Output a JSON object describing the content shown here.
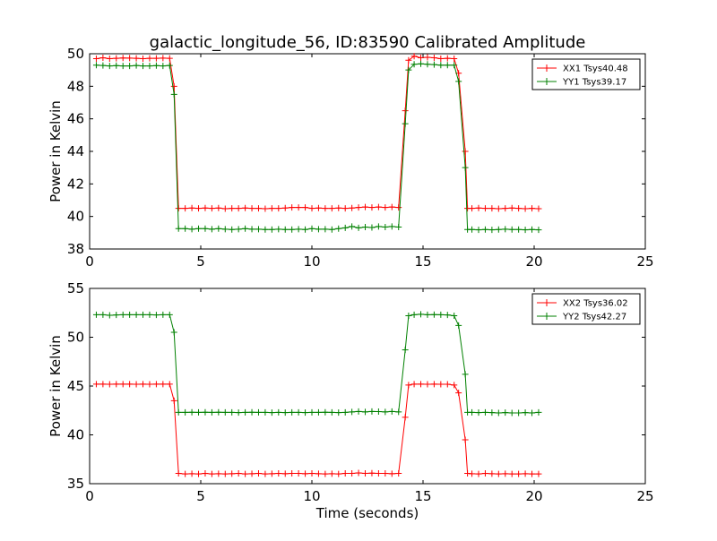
{
  "figure": {
    "title": "galactic_longitude_56, ID:83590 Calibrated Amplitude",
    "xlabel": "Time (seconds)",
    "colors": {
      "red": "#ff0000",
      "green": "#008000"
    }
  },
  "chart_data": [
    {
      "type": "line",
      "title": "galactic_longitude_56, ID:83590 Calibrated Amplitude",
      "xlabel": "",
      "ylabel": "Power in Kelvin",
      "xlim": [
        0,
        25
      ],
      "ylim": [
        38,
        50
      ],
      "xticks": [
        0,
        5,
        10,
        15,
        20,
        25
      ],
      "yticks": [
        38,
        40,
        42,
        44,
        46,
        48,
        50
      ],
      "grid": false,
      "legend_position": "top-right",
      "x": [
        0.3,
        0.6,
        0.9,
        1.2,
        1.5,
        1.8,
        2.1,
        2.4,
        2.7,
        3.0,
        3.3,
        3.6,
        3.8,
        4.0,
        4.3,
        4.6,
        4.9,
        5.2,
        5.5,
        5.8,
        6.1,
        6.4,
        6.7,
        7.0,
        7.3,
        7.6,
        7.9,
        8.2,
        8.5,
        8.8,
        9.1,
        9.4,
        9.7,
        10.0,
        10.3,
        10.6,
        10.9,
        11.2,
        11.5,
        11.8,
        12.1,
        12.4,
        12.7,
        13.0,
        13.3,
        13.6,
        13.9,
        14.2,
        14.35,
        14.6,
        14.9,
        15.2,
        15.5,
        15.8,
        16.1,
        16.4,
        16.6,
        16.9,
        17.0,
        17.2,
        17.5,
        17.8,
        18.1,
        18.4,
        18.7,
        19.0,
        19.3,
        19.6,
        19.9,
        20.2
      ],
      "series": [
        {
          "name": "XX1 Tsys40.48",
          "color": "#ff0000",
          "values": [
            49.7,
            49.75,
            49.7,
            49.72,
            49.74,
            49.73,
            49.72,
            49.7,
            49.72,
            49.72,
            49.73,
            49.72,
            48.0,
            40.5,
            40.5,
            40.52,
            40.5,
            40.52,
            40.5,
            40.52,
            40.48,
            40.5,
            40.5,
            40.52,
            40.5,
            40.5,
            40.48,
            40.5,
            40.5,
            40.52,
            40.55,
            40.55,
            40.55,
            40.5,
            40.52,
            40.5,
            40.5,
            40.52,
            40.5,
            40.52,
            40.55,
            40.58,
            40.55,
            40.58,
            40.55,
            40.58,
            40.55,
            46.5,
            49.6,
            49.85,
            49.75,
            49.78,
            49.75,
            49.7,
            49.72,
            49.7,
            48.8,
            44.0,
            40.5,
            40.5,
            40.52,
            40.5,
            40.5,
            40.48,
            40.5,
            40.52,
            40.5,
            40.48,
            40.5,
            40.48
          ]
        },
        {
          "name": "YY1 Tsys39.17",
          "color": "#008000",
          "values": [
            49.3,
            49.28,
            49.25,
            49.27,
            49.25,
            49.25,
            49.28,
            49.25,
            49.25,
            49.27,
            49.25,
            49.28,
            47.5,
            39.25,
            39.25,
            39.22,
            39.25,
            39.25,
            39.22,
            39.25,
            39.22,
            39.2,
            39.22,
            39.25,
            39.22,
            39.22,
            39.2,
            39.2,
            39.22,
            39.2,
            39.2,
            39.22,
            39.2,
            39.25,
            39.22,
            39.22,
            39.2,
            39.25,
            39.3,
            39.38,
            39.3,
            39.35,
            39.32,
            39.38,
            39.35,
            39.38,
            39.35,
            45.7,
            49.0,
            49.35,
            49.38,
            49.35,
            49.33,
            49.3,
            49.3,
            49.3,
            48.3,
            43.0,
            39.2,
            39.2,
            39.18,
            39.2,
            39.18,
            39.2,
            39.22,
            39.2,
            39.2,
            39.18,
            39.2,
            39.18
          ]
        }
      ]
    },
    {
      "type": "line",
      "title": "",
      "xlabel": "Time (seconds)",
      "ylabel": "Power in Kelvin",
      "xlim": [
        0,
        25
      ],
      "ylim": [
        35,
        55
      ],
      "xticks": [
        0,
        5,
        10,
        15,
        20,
        25
      ],
      "yticks": [
        35,
        40,
        45,
        50,
        55
      ],
      "grid": false,
      "legend_position": "top-right",
      "x": [
        0.3,
        0.6,
        0.9,
        1.2,
        1.5,
        1.8,
        2.1,
        2.4,
        2.7,
        3.0,
        3.3,
        3.6,
        3.8,
        4.0,
        4.3,
        4.6,
        4.9,
        5.2,
        5.5,
        5.8,
        6.1,
        6.4,
        6.7,
        7.0,
        7.3,
        7.6,
        7.9,
        8.2,
        8.5,
        8.8,
        9.1,
        9.4,
        9.7,
        10.0,
        10.3,
        10.6,
        10.9,
        11.2,
        11.5,
        11.8,
        12.1,
        12.4,
        12.7,
        13.0,
        13.3,
        13.6,
        13.9,
        14.2,
        14.35,
        14.6,
        14.9,
        15.2,
        15.5,
        15.8,
        16.1,
        16.4,
        16.6,
        16.9,
        17.0,
        17.2,
        17.5,
        17.8,
        18.1,
        18.4,
        18.7,
        19.0,
        19.3,
        19.6,
        19.9,
        20.2
      ],
      "series": [
        {
          "name": "XX2 Tsys36.02",
          "color": "#ff0000",
          "values": [
            45.2,
            45.2,
            45.18,
            45.2,
            45.2,
            45.2,
            45.18,
            45.2,
            45.18,
            45.2,
            45.2,
            45.2,
            43.5,
            36.05,
            36.0,
            36.02,
            36.0,
            36.05,
            36.0,
            36.02,
            36.0,
            36.02,
            36.05,
            36.0,
            36.02,
            36.05,
            36.0,
            36.02,
            36.05,
            36.02,
            36.05,
            36.05,
            36.02,
            36.05,
            36.02,
            36.0,
            36.02,
            36.0,
            36.05,
            36.05,
            36.1,
            36.05,
            36.08,
            36.05,
            36.05,
            36.02,
            36.05,
            41.8,
            45.1,
            45.2,
            45.2,
            45.18,
            45.2,
            45.18,
            45.18,
            45.1,
            44.3,
            39.5,
            36.05,
            36.02,
            36.0,
            36.05,
            36.02,
            36.0,
            36.02,
            36.0,
            36.0,
            36.02,
            36.0,
            36.0
          ]
        },
        {
          "name": "YY2 Tsys42.27",
          "color": "#008000",
          "values": [
            52.3,
            52.3,
            52.25,
            52.28,
            52.3,
            52.3,
            52.3,
            52.3,
            52.3,
            52.28,
            52.3,
            52.3,
            50.5,
            42.3,
            42.3,
            42.32,
            42.3,
            42.32,
            42.3,
            42.32,
            42.3,
            42.3,
            42.28,
            42.3,
            42.32,
            42.3,
            42.3,
            42.28,
            42.3,
            42.28,
            42.3,
            42.3,
            42.28,
            42.3,
            42.3,
            42.32,
            42.3,
            42.28,
            42.3,
            42.35,
            42.4,
            42.35,
            42.4,
            42.38,
            42.35,
            42.4,
            42.35,
            48.7,
            52.2,
            52.3,
            52.35,
            52.3,
            52.32,
            52.3,
            52.28,
            52.2,
            51.2,
            46.2,
            42.3,
            42.3,
            42.28,
            42.3,
            42.28,
            42.25,
            42.28,
            42.25,
            42.25,
            42.28,
            42.25,
            42.3
          ]
        }
      ]
    }
  ]
}
